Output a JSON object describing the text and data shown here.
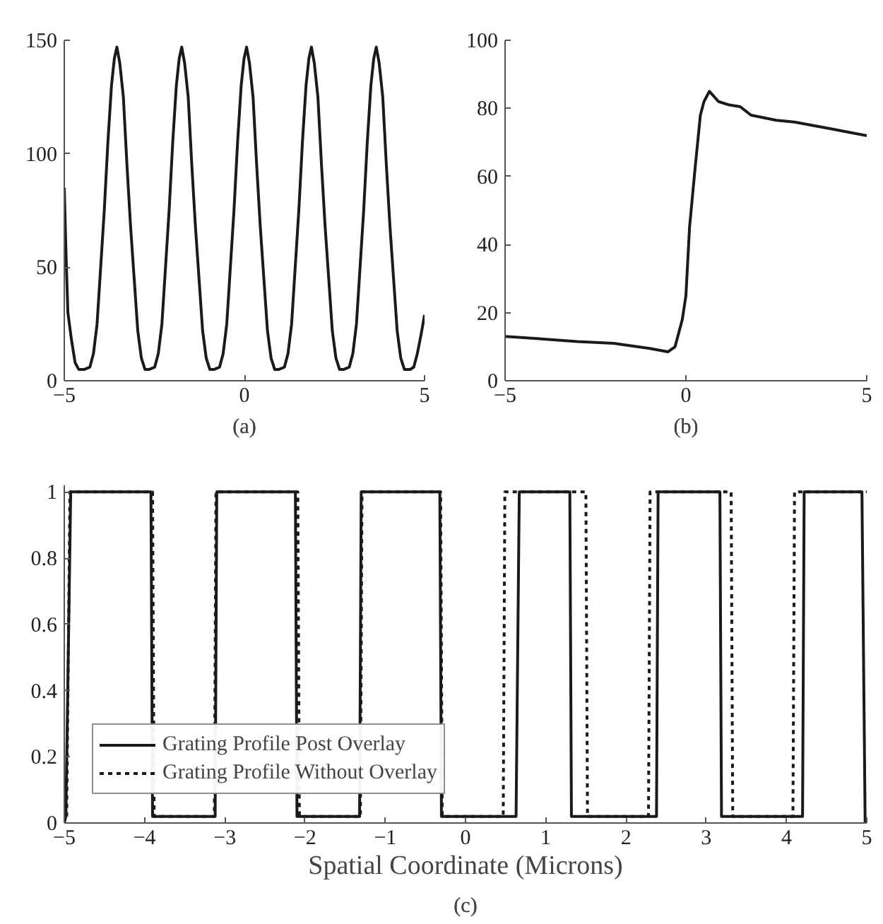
{
  "chart_data": [
    {
      "type": "line",
      "title": "(a)",
      "xlim": [
        -5,
        5
      ],
      "ylim": [
        0,
        150
      ],
      "xticks": [
        -5,
        0,
        5
      ],
      "yticks": [
        0,
        50,
        100,
        150
      ],
      "grid": false,
      "legend": false,
      "series": [
        {
          "color": "#1a1a1a",
          "x": [
            -5,
            -4.95,
            -4.9,
            -4.8,
            -4.7,
            -4.6,
            -4.44,
            -4.29,
            -4.19,
            -4.09,
            -3.99,
            -3.89,
            -3.79,
            -3.69,
            -3.61,
            -3.54,
            -3.46,
            -3.36,
            -3.26,
            -3.16,
            -3.06,
            -2.96,
            -2.86,
            -2.76,
            -2.64,
            -2.49,
            -2.39,
            -2.29,
            -2.19,
            -2.09,
            -1.99,
            -1.89,
            -1.81,
            -1.74,
            -1.66,
            -1.56,
            -1.46,
            -1.36,
            -1.26,
            -1.16,
            -1.06,
            -0.96,
            -0.84,
            -0.69,
            -0.59,
            -0.49,
            -0.39,
            -0.29,
            -0.19,
            -0.09,
            -0.01,
            0.06,
            0.14,
            0.24,
            0.34,
            0.44,
            0.54,
            0.64,
            0.74,
            0.84,
            0.96,
            1.11,
            1.21,
            1.31,
            1.41,
            1.51,
            1.61,
            1.71,
            1.79,
            1.86,
            1.94,
            2.04,
            2.14,
            2.24,
            2.34,
            2.44,
            2.54,
            2.64,
            2.76,
            2.91,
            3.01,
            3.11,
            3.21,
            3.31,
            3.41,
            3.51,
            3.59,
            3.66,
            3.74,
            3.84,
            3.94,
            4.04,
            4.14,
            4.24,
            4.34,
            4.44,
            4.6,
            4.7,
            4.8,
            4.9,
            5
          ],
          "values": [
            85,
            55,
            30,
            18,
            8,
            5,
            5,
            6,
            12,
            25,
            50,
            75,
            105,
            130,
            142,
            147,
            140,
            125,
            95,
            68,
            45,
            22,
            10,
            5,
            5,
            6,
            12,
            25,
            50,
            75,
            105,
            130,
            142,
            147,
            140,
            125,
            95,
            68,
            45,
            22,
            10,
            5,
            5,
            6,
            12,
            25,
            50,
            75,
            105,
            130,
            142,
            147,
            140,
            125,
            95,
            68,
            45,
            22,
            10,
            5,
            5,
            6,
            12,
            25,
            50,
            75,
            105,
            130,
            142,
            147,
            140,
            125,
            95,
            68,
            45,
            22,
            10,
            5,
            5,
            6,
            12,
            25,
            50,
            75,
            105,
            130,
            142,
            147,
            140,
            125,
            95,
            68,
            45,
            22,
            10,
            5,
            5,
            6,
            12,
            20,
            29
          ]
        }
      ]
    },
    {
      "type": "line",
      "title": "(b)",
      "xlim": [
        -5,
        5
      ],
      "ylim": [
        0,
        100
      ],
      "xticks": [
        -5,
        0,
        5
      ],
      "yticks": [
        0,
        20,
        40,
        60,
        80,
        100
      ],
      "grid": false,
      "legend": false,
      "series": [
        {
          "color": "#1a1a1a",
          "x": [
            -5,
            -4,
            -3,
            -2,
            -1,
            -0.5,
            -0.3,
            -0.1,
            0,
            0.1,
            0.25,
            0.4,
            0.5,
            0.65,
            0.9,
            1.2,
            1.5,
            1.8,
            2.5,
            3,
            4,
            5
          ],
          "values": [
            13,
            12.3,
            11.5,
            11,
            9.5,
            8.5,
            10,
            18,
            25,
            45,
            62,
            78,
            82,
            85,
            82,
            81,
            80.5,
            78,
            76.5,
            76,
            74,
            72
          ]
        }
      ]
    },
    {
      "type": "line",
      "title": "(c)",
      "xlabel": "Spatial Coordinate (Microns)",
      "xlim": [
        -5,
        5
      ],
      "ylim": [
        0,
        1.02
      ],
      "xticks": [
        -5,
        -4,
        -3,
        -2,
        -1,
        0,
        1,
        2,
        3,
        4,
        5
      ],
      "yticks": [
        0,
        0.2,
        0.4,
        0.6,
        0.8,
        1
      ],
      "grid": false,
      "legend": "bottom left",
      "series": [
        {
          "name": "Grating Profile Post Overlay",
          "color": "#1a1a1a",
          "line_style": "solid",
          "x": [
            -5,
            -4.98,
            -4.92,
            -3.92,
            -3.9,
            -3.12,
            -3.1,
            -2.12,
            -2.1,
            -1.32,
            -1.3,
            -0.32,
            -0.3,
            0.63,
            0.67,
            1.3,
            1.32,
            2.38,
            2.4,
            3.17,
            3.19,
            4.2,
            4.22,
            4.94,
            4.98
          ],
          "values": [
            0,
            0.02,
            1,
            1,
            0.02,
            0.02,
            1,
            1,
            0.02,
            0.02,
            1,
            1,
            0.02,
            0.02,
            1,
            1,
            0.02,
            0.02,
            1,
            1,
            0.02,
            0.02,
            1,
            1,
            0
          ]
        },
        {
          "name": "Grating Profile Without Overlay",
          "color": "#1a1a1a",
          "line_style": "dotted",
          "x": [
            -4.97,
            -4.93,
            -3.9,
            -3.88,
            -3.13,
            -3.11,
            -2.09,
            -2.07,
            -1.31,
            -1.29,
            -0.31,
            -0.29,
            0.47,
            0.49,
            1.5,
            1.52,
            2.28,
            2.3,
            3.31,
            3.33,
            4.08,
            4.1,
            5
          ],
          "values": [
            0.02,
            1,
            1,
            0.02,
            0.02,
            1,
            1,
            0.02,
            0.02,
            1,
            1,
            0.02,
            0.02,
            1,
            1,
            0.02,
            0.02,
            1,
            1,
            0.02,
            0.02,
            1,
            1
          ]
        }
      ]
    }
  ]
}
